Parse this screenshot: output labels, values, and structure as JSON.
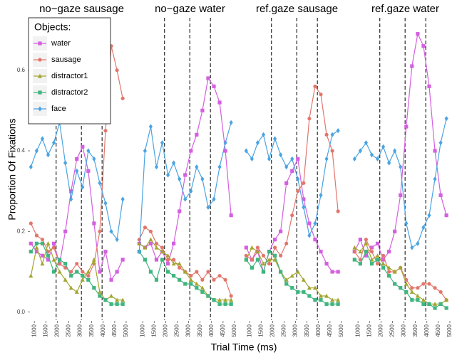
{
  "chart_data": [
    {
      "type": "line",
      "title": "no−gaze sausage",
      "xlabel": "Trial Time (ms)",
      "ylabel": "Proportion Of Fixations",
      "legend_title": "Objects:",
      "legend": "top-left",
      "x": [
        850,
        1100,
        1350,
        1600,
        1850,
        2100,
        2350,
        2600,
        2850,
        3100,
        3350,
        3600,
        3850,
        4100,
        4350,
        4600,
        4850
      ],
      "xlim": [
        840,
        5280
      ],
      "xticks": [
        1000,
        1500,
        2000,
        2500,
        3000,
        3500,
        4000,
        4500,
        5000
      ],
      "ylim": [
        -0.02,
        0.73
      ],
      "yticks": [
        {
          "value": 0,
          "label": "0.0"
        },
        0.2,
        0.4,
        0.6
      ],
      "vlines": [
        1950,
        3050,
        3950
      ],
      "series": [
        {
          "name": "water",
          "color": "#d45fe0",
          "marker": "square",
          "values": [
            0.17,
            0.15,
            0.14,
            0.13,
            0.17,
            0.12,
            0.2,
            0.3,
            0.38,
            0.41,
            0.35,
            0.22,
            0.1,
            0.15,
            0.08,
            0.1,
            0.13
          ]
        },
        {
          "name": "sausage",
          "color": "#e2766c",
          "marker": "circle",
          "values": [
            0.22,
            0.19,
            0.18,
            0.15,
            0.16,
            0.12,
            0.11,
            0.1,
            0.12,
            0.1,
            0.09,
            0.12,
            0.2,
            0.45,
            0.66,
            0.6,
            0.53
          ]
        },
        {
          "name": "distractor1",
          "color": "#a3a52f",
          "marker": "triangle",
          "values": [
            0.09,
            0.16,
            0.12,
            0.17,
            0.13,
            0.1,
            0.08,
            0.06,
            0.05,
            0.08,
            0.1,
            0.13,
            0.05,
            0.03,
            0.04,
            0.03,
            0.03
          ]
        },
        {
          "name": "distractor2",
          "color": "#3fb57f",
          "marker": "square",
          "values": [
            0.15,
            0.17,
            0.17,
            0.14,
            0.1,
            0.13,
            0.12,
            0.09,
            0.1,
            0.09,
            0.08,
            0.06,
            0.04,
            0.03,
            0.02,
            0.02,
            0.02
          ]
        },
        {
          "name": "face",
          "color": "#4ba4e2",
          "marker": "diamond",
          "values": [
            0.36,
            0.4,
            0.43,
            0.39,
            0.42,
            0.47,
            0.37,
            0.28,
            0.35,
            0.31,
            0.4,
            0.38,
            0.32,
            0.27,
            0.2,
            0.18,
            0.28
          ]
        }
      ]
    },
    {
      "type": "line",
      "title": "no−gaze water",
      "x": [
        850,
        1100,
        1350,
        1600,
        1850,
        2100,
        2350,
        2600,
        2850,
        3100,
        3350,
        3600,
        3850,
        4100,
        4350,
        4600,
        4850
      ],
      "xlim": [
        840,
        5280
      ],
      "xticks": [
        1000,
        1500,
        2000,
        2500,
        3000,
        3500,
        4000,
        4500,
        5000
      ],
      "ylim": [
        -0.02,
        0.73
      ],
      "vlines": [
        1950,
        3050,
        3950
      ],
      "series": [
        {
          "color": "#d45fe0",
          "marker": "square",
          "values": [
            0.17,
            0.16,
            0.17,
            0.13,
            0.15,
            0.12,
            0.17,
            0.25,
            0.34,
            0.4,
            0.44,
            0.5,
            0.58,
            0.56,
            0.52,
            0.4,
            0.24
          ]
        },
        {
          "color": "#e2766c",
          "marker": "circle",
          "values": [
            0.18,
            0.21,
            0.2,
            0.17,
            0.16,
            0.13,
            0.13,
            0.11,
            0.1,
            0.09,
            0.1,
            0.08,
            0.1,
            0.08,
            0.09,
            0.08,
            0.04
          ]
        },
        {
          "color": "#a3a52f",
          "marker": "triangle",
          "values": [
            0.17,
            0.16,
            0.18,
            0.16,
            0.15,
            0.14,
            0.12,
            0.12,
            0.1,
            0.08,
            0.07,
            0.06,
            0.04,
            0.03,
            0.03,
            0.03,
            0.03
          ]
        },
        {
          "color": "#3fb57f",
          "marker": "square",
          "values": [
            0.15,
            0.13,
            0.1,
            0.08,
            0.13,
            0.1,
            0.09,
            0.08,
            0.07,
            0.07,
            0.06,
            0.05,
            0.04,
            0.03,
            0.02,
            0.02,
            0.02
          ]
        },
        {
          "color": "#4ba4e2",
          "marker": "diamond",
          "values": [
            0.15,
            0.4,
            0.46,
            0.36,
            0.42,
            0.34,
            0.37,
            0.33,
            0.28,
            0.3,
            0.36,
            0.33,
            0.26,
            0.28,
            0.36,
            0.42,
            0.47
          ]
        }
      ]
    },
    {
      "type": "line",
      "title": "ref.gaze sausage",
      "x": [
        850,
        1100,
        1350,
        1600,
        1850,
        2100,
        2350,
        2600,
        2850,
        3100,
        3350,
        3600,
        3850,
        4100,
        4350,
        4600,
        4850
      ],
      "xlim": [
        840,
        5280
      ],
      "xticks": [
        1000,
        1500,
        2000,
        2500,
        3000,
        3500,
        4000,
        4500,
        5000
      ],
      "ylim": [
        -0.02,
        0.73
      ],
      "vlines": [
        1950,
        3050,
        3950
      ],
      "series": [
        {
          "color": "#d45fe0",
          "marker": "square",
          "values": [
            0.16,
            0.13,
            0.15,
            0.1,
            0.15,
            0.18,
            0.2,
            0.32,
            0.35,
            0.38,
            0.28,
            0.22,
            0.18,
            0.15,
            0.12,
            0.1,
            0.1
          ]
        },
        {
          "color": "#e2766c",
          "marker": "circle",
          "values": [
            0.14,
            0.13,
            0.16,
            0.14,
            0.12,
            0.16,
            0.14,
            0.17,
            0.24,
            0.3,
            0.32,
            0.48,
            0.56,
            0.54,
            0.44,
            0.4,
            0.25
          ]
        },
        {
          "color": "#a3a52f",
          "marker": "triangle",
          "values": [
            0.13,
            0.16,
            0.15,
            0.12,
            0.13,
            0.13,
            0.1,
            0.08,
            0.09,
            0.1,
            0.08,
            0.06,
            0.06,
            0.04,
            0.04,
            0.03,
            0.03
          ]
        },
        {
          "color": "#3fb57f",
          "marker": "square",
          "values": [
            0.13,
            0.11,
            0.13,
            0.1,
            0.15,
            0.14,
            0.1,
            0.07,
            0.06,
            0.05,
            0.05,
            0.04,
            0.03,
            0.03,
            0.02,
            0.02,
            0.02
          ]
        },
        {
          "color": "#4ba4e2",
          "marker": "diamond",
          "values": [
            0.4,
            0.38,
            0.42,
            0.44,
            0.38,
            0.43,
            0.39,
            0.36,
            0.38,
            0.33,
            0.26,
            0.19,
            0.22,
            0.29,
            0.38,
            0.44,
            0.45
          ]
        }
      ]
    },
    {
      "type": "line",
      "title": "ref.gaze water",
      "x": [
        850,
        1100,
        1350,
        1600,
        1850,
        2100,
        2350,
        2600,
        2850,
        3100,
        3350,
        3600,
        3850,
        4100,
        4350,
        4600,
        4850
      ],
      "xlim": [
        840,
        5280
      ],
      "xticks": [
        1000,
        1500,
        2000,
        2500,
        3000,
        3500,
        4000,
        4500,
        5000
      ],
      "ylim": [
        -0.02,
        0.73
      ],
      "vlines": [
        1950,
        3050,
        3950
      ],
      "series": [
        {
          "color": "#d45fe0",
          "marker": "square",
          "values": [
            0.15,
            0.18,
            0.14,
            0.16,
            0.17,
            0.13,
            0.15,
            0.2,
            0.29,
            0.46,
            0.61,
            0.69,
            0.66,
            0.56,
            0.4,
            0.29,
            0.24
          ]
        },
        {
          "color": "#e2766c",
          "marker": "circle",
          "values": [
            0.15,
            0.13,
            0.18,
            0.15,
            0.12,
            0.14,
            0.1,
            0.1,
            0.11,
            0.08,
            0.06,
            0.06,
            0.07,
            0.07,
            0.06,
            0.05,
            0.03
          ]
        },
        {
          "color": "#a3a52f",
          "marker": "triangle",
          "values": [
            0.16,
            0.15,
            0.17,
            0.13,
            0.14,
            0.12,
            0.11,
            0.1,
            0.11,
            0.07,
            0.05,
            0.04,
            0.03,
            0.02,
            0.02,
            0.02,
            0.03
          ]
        },
        {
          "color": "#3fb57f",
          "marker": "square",
          "values": [
            0.13,
            0.12,
            0.15,
            0.12,
            0.13,
            0.11,
            0.09,
            0.07,
            0.06,
            0.05,
            0.03,
            0.03,
            0.02,
            0.02,
            0.01,
            0.02,
            0.01
          ]
        },
        {
          "color": "#4ba4e2",
          "marker": "diamond",
          "values": [
            0.38,
            0.4,
            0.42,
            0.39,
            0.38,
            0.41,
            0.37,
            0.4,
            0.36,
            0.22,
            0.16,
            0.17,
            0.21,
            0.24,
            0.33,
            0.42,
            0.48
          ]
        }
      ]
    }
  ]
}
